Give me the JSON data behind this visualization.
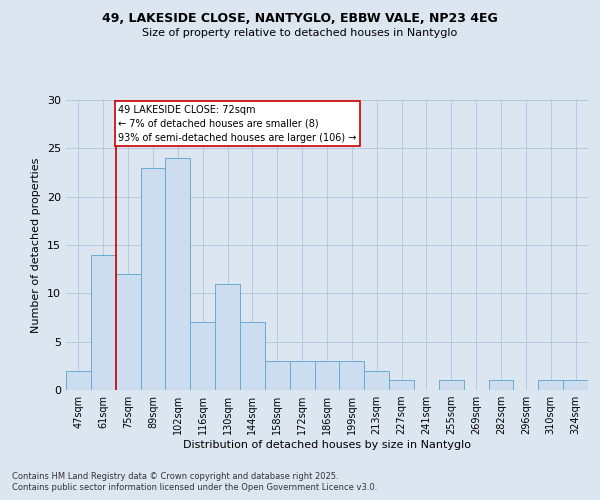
{
  "title_line1": "49, LAKESIDE CLOSE, NANTYGLO, EBBW VALE, NP23 4EG",
  "title_line2": "Size of property relative to detached houses in Nantyglo",
  "xlabel": "Distribution of detached houses by size in Nantyglo",
  "ylabel": "Number of detached properties",
  "categories": [
    "47sqm",
    "61sqm",
    "75sqm",
    "89sqm",
    "102sqm",
    "116sqm",
    "130sqm",
    "144sqm",
    "158sqm",
    "172sqm",
    "186sqm",
    "199sqm",
    "213sqm",
    "227sqm",
    "241sqm",
    "255sqm",
    "269sqm",
    "282sqm",
    "296sqm",
    "310sqm",
    "324sqm"
  ],
  "values": [
    2,
    14,
    12,
    23,
    24,
    7,
    11,
    7,
    3,
    3,
    3,
    3,
    2,
    1,
    0,
    1,
    0,
    1,
    0,
    1,
    1
  ],
  "bar_color": "#ccddf0",
  "bar_edge_color": "#6aaad4",
  "red_line_x": 1.5,
  "annotation_text": "49 LAKESIDE CLOSE: 72sqm\n← 7% of detached houses are smaller (8)\n93% of semi-detached houses are larger (106) →",
  "annotation_box_color": "#ffffff",
  "annotation_box_edge": "#cc0000",
  "annotation_text_color": "#000000",
  "red_line_color": "#cc0000",
  "ylim": [
    0,
    30
  ],
  "yticks": [
    0,
    5,
    10,
    15,
    20,
    25,
    30
  ],
  "grid_color": "#b8c8dc",
  "bg_color": "#dce6f0",
  "footer_line1": "Contains HM Land Registry data © Crown copyright and database right 2025.",
  "footer_line2": "Contains public sector information licensed under the Open Government Licence v3.0."
}
